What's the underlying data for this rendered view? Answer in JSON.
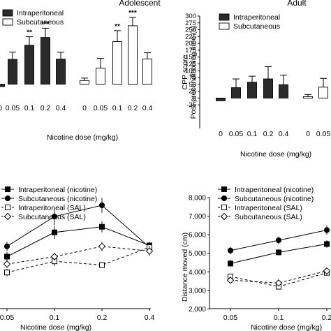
{
  "chart_data": [
    {
      "id": "adolescent-cpp",
      "type": "bar",
      "title": "Adolescent",
      "xlabel": "Nicotine dose (mg/kg)",
      "ylabel": "",
      "ylim": [
        -30,
        300
      ],
      "legend_position": "top-left",
      "legend": [
        "Intraperitoneal",
        "Subcutaneous"
      ],
      "groups": [
        {
          "name": "Intraperitoneal",
          "fill": "#2b2b2b",
          "tick_labels": [
            "0",
            "0.05",
            "0.1",
            "0.2",
            "0.4"
          ],
          "values": [
            -10,
            102,
            160,
            192,
            103
          ],
          "errors": [
            0,
            30,
            35,
            38,
            28
          ],
          "significance": [
            "",
            "",
            "**",
            "***",
            ""
          ]
        },
        {
          "name": "Subcutaneous",
          "fill": "#ffffff",
          "tick_labels": [
            "0",
            "0.05",
            "0.1",
            "0.2",
            "0.4"
          ],
          "values": [
            15,
            66,
            175,
            240,
            104
          ],
          "errors": [
            10,
            40,
            45,
            35,
            25
          ],
          "significance": [
            "",
            "",
            "**",
            "***",
            ""
          ]
        }
      ]
    },
    {
      "id": "adult-cpp",
      "type": "bar",
      "title": "Adult",
      "xlabel": "Nicotine dose (mg/kg)",
      "ylabel": "CPP score\nPost-preconditioning time (s)",
      "ylim": [
        -50,
        300
      ],
      "yticks": [
        -25,
        0,
        25,
        50,
        75,
        100,
        125,
        150,
        175,
        200,
        225,
        250,
        275,
        300
      ],
      "legend_position": "top-left",
      "legend": [
        "Intraperitoneal",
        "Subcutaneous"
      ],
      "groups": [
        {
          "name": "Intraperitoneal",
          "fill": "#2b2b2b",
          "tick_labels": [
            "0",
            "0.05",
            "0.1",
            "0.2",
            "0.4"
          ],
          "values": [
            -10,
            38,
            58,
            70,
            49
          ],
          "errors": [
            0,
            32,
            22,
            45,
            35
          ],
          "significance": [
            "",
            "",
            "",
            "",
            ""
          ]
        },
        {
          "name": "Subcutaneous",
          "fill": "#ffffff",
          "tick_labels": [
            "0",
            "0.05"
          ],
          "values": [
            5,
            40
          ],
          "errors": [
            8,
            32
          ],
          "significance": [
            "",
            ""
          ]
        }
      ]
    },
    {
      "id": "adolescent-locomotion",
      "type": "line",
      "title": "",
      "xlabel": "Nicotine dose (mg/kg)",
      "ylabel": "",
      "x_ticks": [
        "0.05",
        "0.1",
        "0.2",
        "0.4"
      ],
      "ylim": [
        1000,
        8000
      ],
      "legend_position": "top-left",
      "legend": [
        "Intraperitoneal (nicotine)",
        "Subcutaneous (nicotine)",
        "Intraperitoneal (SAL)",
        "Subcutaneous (SAL)"
      ],
      "series": [
        {
          "name": "Intraperitoneal (nicotine)",
          "marker": "square-filled",
          "dashed": false,
          "values": [
            4500,
            5800,
            6100,
            5100
          ],
          "errors": [
            250,
            350,
            300,
            200
          ]
        },
        {
          "name": "Subcutaneous (nicotine)",
          "marker": "circle-filled",
          "dashed": false,
          "values": [
            5050,
            6650,
            7250,
            5000
          ],
          "errors": [
            250,
            450,
            400,
            200
          ]
        },
        {
          "name": "Intraperitoneal (SAL)",
          "marker": "square-open",
          "dashed": true,
          "values": [
            3650,
            4250,
            4050,
            5000
          ],
          "errors": [
            200,
            250,
            150,
            250
          ]
        },
        {
          "name": "Subcutaneous (SAL)",
          "marker": "diamond-open",
          "dashed": true,
          "values": [
            4100,
            4500,
            5050,
            4800
          ],
          "errors": [
            200,
            200,
            250,
            250
          ]
        }
      ]
    },
    {
      "id": "adult-locomotion",
      "type": "line",
      "title": "",
      "xlabel": "Nicotine dose (mg/kg)",
      "ylabel": "Distance moved (cm)",
      "x_ticks": [
        "0.05",
        "0.1",
        "0.2"
      ],
      "yticks": [
        "2,000",
        "3,000",
        "4,000",
        "5,000",
        "6,000",
        "7,000",
        "8,000"
      ],
      "ylim": [
        1000,
        8000
      ],
      "legend_position": "top-left",
      "legend": [
        "Intraperitoneal (nicotine)",
        "Subcutaneous (nicotine)",
        "Intraperitoneal (SAL)",
        "Subcutaneous (SAL)"
      ],
      "series": [
        {
          "name": "Intraperitoneal (nicotine)",
          "marker": "square-filled",
          "dashed": false,
          "values": [
            4450,
            5050,
            5500
          ],
          "errors": [
            200,
            150,
            200
          ]
        },
        {
          "name": "Subcutaneous (nicotine)",
          "marker": "circle-filled",
          "dashed": false,
          "values": [
            5150,
            5700,
            6250
          ],
          "errors": [
            200,
            200,
            250
          ]
        },
        {
          "name": "Intraperitoneal (SAL)",
          "marker": "square-open",
          "dashed": true,
          "values": [
            3750,
            3200,
            3950
          ],
          "errors": [
            150,
            150,
            150
          ]
        },
        {
          "name": "Subcutaneous (SAL)",
          "marker": "diamond-open",
          "dashed": true,
          "values": [
            3550,
            3400,
            4050
          ],
          "errors": [
            150,
            150,
            150
          ]
        }
      ]
    }
  ]
}
